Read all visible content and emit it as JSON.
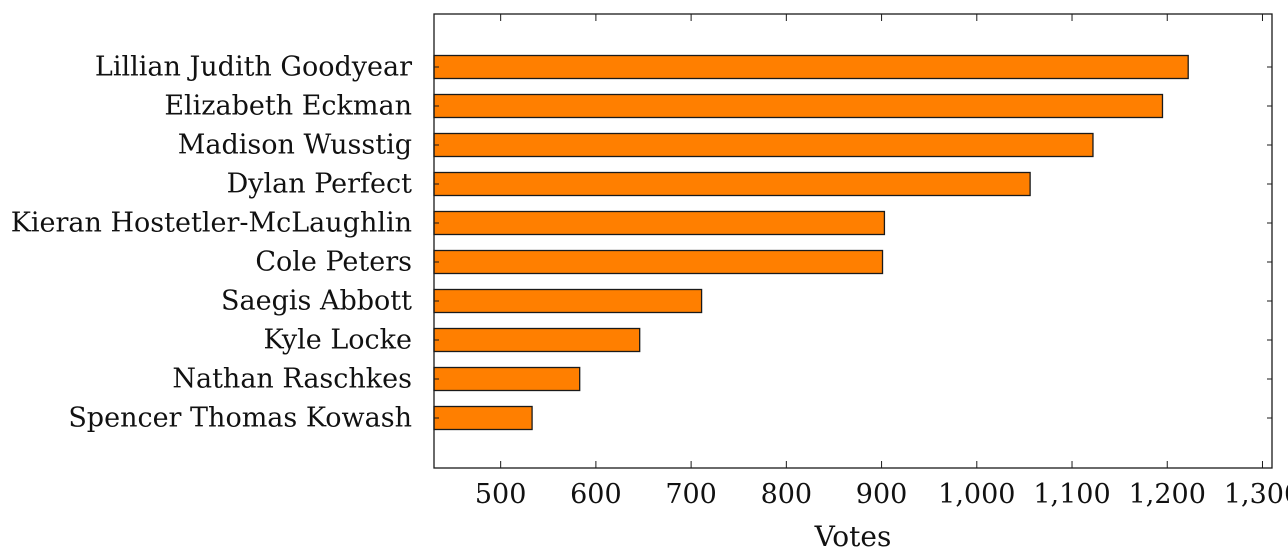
{
  "chart_data": {
    "type": "bar",
    "orientation": "horizontal",
    "categories": [
      "Lillian Judith Goodyear",
      "Elizabeth Eckman",
      "Madison Wusstig",
      "Dylan Perfect",
      "Kieran Hostetler-McLaughlin",
      "Cole Peters",
      "Saegis Abbott",
      "Kyle Locke",
      "Nathan Raschkes",
      "Spencer Thomas Kowash"
    ],
    "values": [
      1222,
      1195,
      1122,
      1056,
      903,
      901,
      711,
      646,
      583,
      533
    ],
    "title": "",
    "xlabel": "Votes",
    "ylabel": "",
    "xlim": [
      430,
      1310
    ],
    "xticks": [
      500,
      600,
      700,
      800,
      900,
      1000,
      1100,
      1200,
      1300
    ],
    "xtick_labels": [
      "500",
      "600",
      "700",
      "800",
      "900",
      "1,000",
      "1,100",
      "1,200",
      "1,300"
    ],
    "grid": false,
    "legend": "none",
    "bar_color": "#ff7f00",
    "bar_edge_color": "#1a1a1a"
  }
}
